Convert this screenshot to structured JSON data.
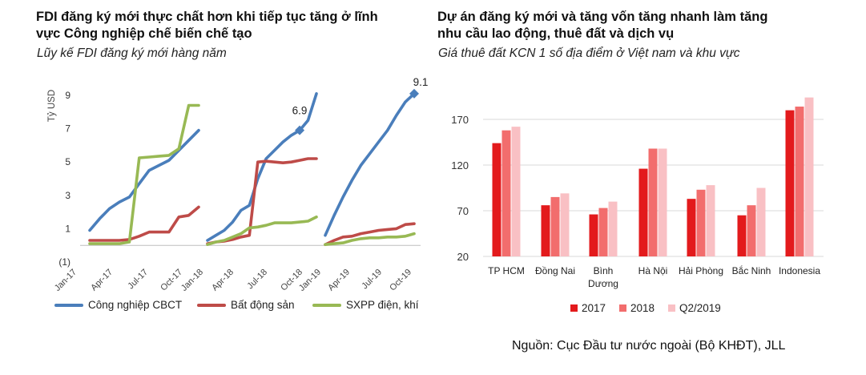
{
  "left": {
    "title_line1": "FDI đăng ký mới thực chất hơn khi tiếp tục tăng ở lĩnh",
    "title_line2": "vực Công nghiệp chế biến chế tạo",
    "subtitle": "Lũy kế FDI đăng ký mới hàng năm",
    "legend": [
      "Công nghiệp CBCT",
      "Bất động sản",
      "SXPP điện, khí"
    ]
  },
  "right": {
    "title_line1": "Dự án đăng ký mới và tăng vốn tăng nhanh làm tăng",
    "title_line2": "nhu cầu lao động, thuê đất và dịch vụ",
    "subtitle": "Giá thuê đất KCN 1 số địa điểm ở Việt nam và khu vực",
    "legend": [
      "2017",
      "2018",
      "Q2/2019"
    ]
  },
  "source": "Nguồn: Cục Đầu tư nước ngoài (Bộ KHĐT), JLL",
  "colors": {
    "cbct": "#4a7ebb",
    "bds": "#be4b48",
    "sxpp": "#98b954",
    "c2017": "#e31a1c",
    "c2018": "#f26d6d",
    "cq2": "#f9c0c4"
  },
  "chart_data": [
    {
      "type": "line",
      "ylabel": "Tỷ USD",
      "ylim": [
        -1,
        9
      ],
      "yticks": [
        "(1)",
        "1",
        "3",
        "5",
        "7",
        "9"
      ],
      "xticks": [
        "Jan-17",
        "Apr-17",
        "Jul-17",
        "Oct-17",
        "Jan-18",
        "Apr-18",
        "Jul-18",
        "Oct-18",
        "Jan-19",
        "Apr-19",
        "Jul-19",
        "Oct-19"
      ],
      "annotations": [
        "6.9",
        "9.1"
      ],
      "grid": false,
      "legend_position": "bottom",
      "series": [
        {
          "name": "Công nghiệp CBCT",
          "segments": [
            [
              0.9,
              1.6,
              2.2,
              2.6,
              2.9,
              3.7,
              4.5,
              4.8,
              5.1,
              5.7,
              6.3,
              6.9
            ],
            [
              0.3,
              0.6,
              0.9,
              1.4,
              2.1,
              2.4,
              4.0,
              5.2,
              5.7,
              6.2,
              6.6,
              6.9,
              7.5,
              9.1
            ],
            [
              0.6,
              1.8,
              2.9,
              3.9,
              4.8,
              5.5,
              6.2,
              6.9,
              7.8,
              8.6,
              9.1
            ]
          ]
        },
        {
          "name": "Bất động sản",
          "segments": [
            [
              0.3,
              0.3,
              0.3,
              0.3,
              0.35,
              0.55,
              0.8,
              0.8,
              0.8,
              1.7,
              1.8,
              2.3
            ],
            [
              0.1,
              0.2,
              0.25,
              0.35,
              0.5,
              0.6,
              5.0,
              5.05,
              5.0,
              4.95,
              5.0,
              5.1,
              5.2,
              5.2
            ],
            [
              0.05,
              0.3,
              0.5,
              0.55,
              0.7,
              0.8,
              0.9,
              0.95,
              1.0,
              1.25,
              1.3
            ]
          ]
        },
        {
          "name": "SXPP điện, khí",
          "segments": [
            [
              0.1,
              0.1,
              0.1,
              0.1,
              0.2,
              5.25,
              5.3,
              5.35,
              5.4,
              5.8,
              8.4,
              8.4
            ],
            [
              0.05,
              0.2,
              0.3,
              0.5,
              0.7,
              1.05,
              1.1,
              1.2,
              1.35,
              1.35,
              1.35,
              1.4,
              1.45,
              1.7
            ],
            [
              0.05,
              0.1,
              0.15,
              0.3,
              0.4,
              0.45,
              0.45,
              0.5,
              0.5,
              0.55,
              0.7
            ]
          ]
        }
      ]
    },
    {
      "type": "bar",
      "categories": [
        "TP HCM",
        "Đồng Nai",
        "Bình Dương",
        "Hà Nội",
        "Hải Phòng",
        "Bắc Ninh",
        "Indonesia"
      ],
      "ylim": [
        20,
        200
      ],
      "yticks": [
        20,
        70,
        120,
        170
      ],
      "grid": true,
      "legend_position": "bottom",
      "series": [
        {
          "name": "2017",
          "values": [
            144,
            76,
            66,
            116,
            83,
            65,
            180
          ]
        },
        {
          "name": "2018",
          "values": [
            158,
            85,
            73,
            138,
            93,
            76,
            184
          ]
        },
        {
          "name": "Q2/2019",
          "values": [
            162,
            89,
            80,
            138,
            98,
            95,
            194
          ]
        }
      ]
    }
  ]
}
